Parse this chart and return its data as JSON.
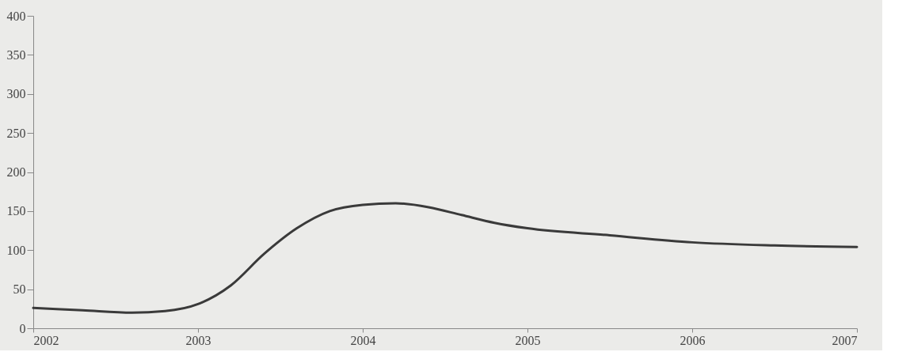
{
  "chart_data": {
    "type": "line",
    "xlim": [
      2002,
      2007
    ],
    "xticks": [
      2002,
      2003,
      2004,
      2005,
      2006,
      2007
    ],
    "ylim": [
      0,
      400
    ],
    "yticks": [
      0,
      50,
      100,
      150,
      200,
      250,
      300,
      350,
      400
    ],
    "grid": false,
    "marker": "none",
    "line_style": "solid",
    "series": [
      {
        "color": "#3a3a3a",
        "x": [
          2002,
          2002.3,
          2002.6,
          2002.8,
          2003,
          2003.2,
          2003.4,
          2003.6,
          2003.8,
          2004,
          2004.2,
          2004.4,
          2004.6,
          2004.8,
          2005,
          2005.5,
          2006,
          2006.5,
          2007
        ],
        "values": [
          26,
          23,
          20,
          22,
          31,
          55,
          95,
          128,
          150,
          158,
          160,
          155,
          145,
          135,
          128,
          119,
          110,
          106,
          104
        ]
      }
    ]
  }
}
